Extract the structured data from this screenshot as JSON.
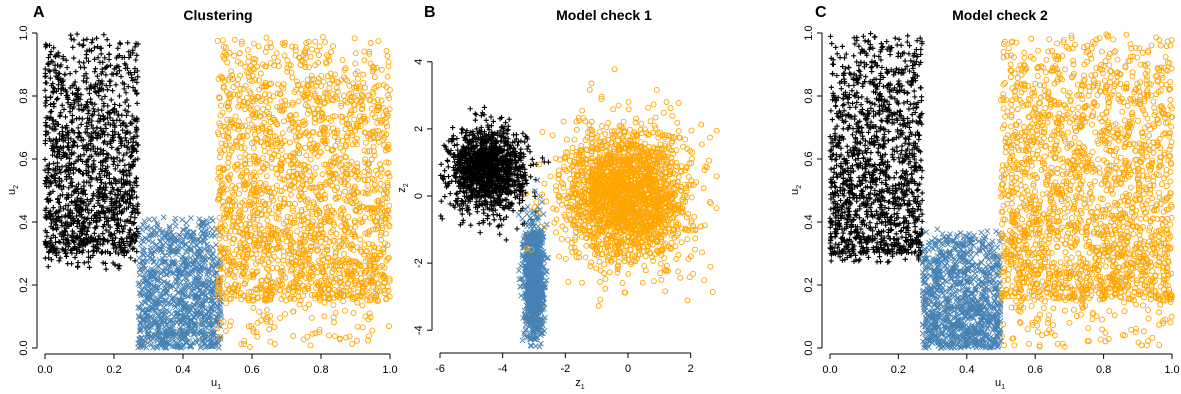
{
  "chart_data": [
    {
      "type": "scatter",
      "panel_letter": "A",
      "title": "Clustering",
      "xlabel": {
        "base": "u",
        "sub": "1"
      },
      "ylabel": {
        "base": "u",
        "sub": "2"
      },
      "xlim": [
        0,
        1
      ],
      "ylim": [
        0,
        1
      ],
      "x_ticks": [
        "0.0",
        "0.2",
        "0.4",
        "0.6",
        "0.8",
        "1.0"
      ],
      "y_ticks": [
        "0.0",
        "0.2",
        "0.4",
        "0.6",
        "0.8",
        "1.0"
      ],
      "series": [
        {
          "marker": "plus",
          "color": "#000000",
          "region": {
            "x": [
              0.0,
              0.27
            ],
            "y": [
              0.3,
              1.0
            ],
            "ymin_floor": 0.25
          },
          "approx_points": 4000
        },
        {
          "marker": "cross",
          "color": "#4682b4",
          "region": {
            "x": [
              0.27,
              0.51
            ],
            "y": [
              0.0,
              0.42
            ]
          },
          "approx_points": 3000
        },
        {
          "marker": "circle",
          "color": "#ffa500",
          "region": {
            "x": [
              0.5,
              1.0
            ],
            "y": [
              0.15,
              1.0
            ],
            "ymin_floor": 0.0
          },
          "approx_points": 6000
        }
      ]
    },
    {
      "type": "scatter",
      "panel_letter": "B",
      "title": "Model check 1",
      "xlabel": {
        "base": "z",
        "sub": "1"
      },
      "ylabel": {
        "base": "z",
        "sub": "2"
      },
      "xlim": [
        -6,
        3
      ],
      "ylim": [
        -4.5,
        4.5
      ],
      "x_ticks": [
        "-6",
        "-4",
        "-2",
        "0",
        "2"
      ],
      "y_ticks": [
        "-4",
        "-2",
        "0",
        "2",
        "4"
      ],
      "series": [
        {
          "marker": "plus",
          "color": "#000000",
          "center": [
            -4.5,
            0.8
          ],
          "spread": [
            0.6,
            0.6
          ],
          "approx_points": 4000
        },
        {
          "marker": "cross",
          "color": "#4682b4",
          "center": [
            -3.0,
            -2.5
          ],
          "spread": [
            0.15,
            0.9
          ],
          "approx_points": 3000
        },
        {
          "marker": "circle",
          "color": "#ffa500",
          "center": [
            0.0,
            0.0
          ],
          "spread": [
            1.0,
            1.0
          ],
          "approx_points": 6000
        }
      ]
    },
    {
      "type": "scatter",
      "panel_letter": "C",
      "title": "Model check 2",
      "xlabel": {
        "base": "u",
        "sub": "1"
      },
      "ylabel": {
        "base": "u",
        "sub": "2"
      },
      "xlim": [
        0,
        1
      ],
      "ylim": [
        0,
        1
      ],
      "x_ticks": [
        "0.0",
        "0.2",
        "0.4",
        "0.6",
        "0.8",
        "1.0"
      ],
      "y_ticks": [
        "0.0",
        "0.2",
        "0.4",
        "0.6",
        "0.8",
        "1.0"
      ],
      "series": [
        {
          "marker": "plus",
          "color": "#000000",
          "region": {
            "x": [
              0.0,
              0.27
            ],
            "y": [
              0.3,
              1.0
            ],
            "ymin_floor": 0.27
          },
          "approx_points": 4000
        },
        {
          "marker": "cross",
          "color": "#4682b4",
          "region": {
            "x": [
              0.27,
              0.5
            ],
            "y": [
              0.0,
              0.38
            ]
          },
          "approx_points": 3000
        },
        {
          "marker": "circle",
          "color": "#ffa500",
          "region": {
            "x": [
              0.5,
              1.0
            ],
            "y": [
              0.15,
              1.0
            ],
            "ymin_floor": 0.0
          },
          "approx_points": 6000
        }
      ]
    }
  ]
}
